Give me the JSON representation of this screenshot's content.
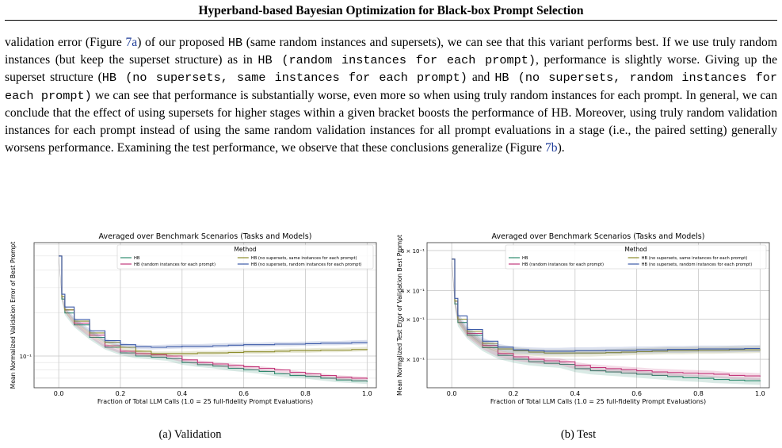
{
  "header": {
    "title": "Hyperband-based Bayesian Optimization for Black-box Prompt Selection"
  },
  "paragraph": {
    "segments": [
      {
        "t": "validation error (Figure "
      },
      {
        "t": "7a",
        "ref": true
      },
      {
        "t": ") of our proposed "
      },
      {
        "t": "HB",
        "mono": true
      },
      {
        "t": " (same random instances and supersets), we can see that this variant performs best. If we use truly random instances (but keep the superset structure) as in "
      },
      {
        "t": "HB (random instances for each prompt)",
        "mono": true
      },
      {
        "t": ", performance is slightly worse. Giving up the superset structure ("
      },
      {
        "t": "HB (no supersets, same instances for each prompt)",
        "mono": true
      },
      {
        "t": " and "
      },
      {
        "t": "HB (no supersets, random instances for each prompt)",
        "mono": true
      },
      {
        "t": " we can see that performance is substantially worse, even more so when using truly random instances for each prompt. In general, we can conclude that the effect of using supersets for higher stages within a given bracket boosts the performance of HB. Moreover, using truly random validation instances for each prompt instead of using the same random validation instances for all prompt evaluations in a stage (i.e., the paired setting) generally worsens performance. Examining the test performance, we observe that these conclusions generalize (Figure "
      },
      {
        "t": "7b",
        "ref": true
      },
      {
        "t": ")."
      }
    ]
  },
  "chart_data": [
    {
      "id": "a",
      "type": "line",
      "title": "Averaged over Benchmark Scenarios (Tasks and Models)",
      "xlabel": "Fraction of Total LLM Calls (1.0 = 25 full-fidelity Prompt Evaluations)",
      "ylabel": "Mean Normalized Validation Error of Best Prompt",
      "xlim": [
        -0.08,
        1.03
      ],
      "ylim": [
        0.06,
        0.62
      ],
      "yscale": "log",
      "xticks": [
        0.0,
        0.2,
        0.4,
        0.6,
        0.8,
        1.0
      ],
      "xtick_labels": [
        "0.0",
        "0.2",
        "0.4",
        "0.6",
        "0.8",
        "1.0"
      ],
      "yticks": [
        0.1
      ],
      "ytick_labels": [
        "10⁻¹"
      ],
      "grid": true,
      "legend": {
        "title": "Method",
        "position": "top-right"
      },
      "series": [
        {
          "name": "HB",
          "color": "#2e8b6e",
          "x": [
            0.0,
            0.01,
            0.02,
            0.05,
            0.1,
            0.15,
            0.2,
            0.25,
            0.3,
            0.35,
            0.4,
            0.45,
            0.5,
            0.55,
            0.6,
            0.65,
            0.7,
            0.75,
            0.8,
            0.85,
            0.9,
            0.95,
            1.0
          ],
          "y": [
            0.5,
            0.25,
            0.2,
            0.165,
            0.135,
            0.115,
            0.105,
            0.1,
            0.098,
            0.096,
            0.09,
            0.087,
            0.085,
            0.082,
            0.08,
            0.078,
            0.075,
            0.073,
            0.072,
            0.07,
            0.068,
            0.067,
            0.066
          ]
        },
        {
          "name": "HB (random instances for each prompt)",
          "color": "#c2387a",
          "x": [
            0.0,
            0.01,
            0.02,
            0.05,
            0.1,
            0.15,
            0.2,
            0.25,
            0.3,
            0.35,
            0.4,
            0.45,
            0.5,
            0.55,
            0.6,
            0.65,
            0.7,
            0.75,
            0.8,
            0.85,
            0.9,
            0.95,
            1.0
          ],
          "y": [
            0.5,
            0.26,
            0.21,
            0.17,
            0.14,
            0.118,
            0.108,
            0.104,
            0.102,
            0.1,
            0.094,
            0.09,
            0.088,
            0.086,
            0.084,
            0.082,
            0.08,
            0.077,
            0.075,
            0.073,
            0.071,
            0.07,
            0.069
          ]
        },
        {
          "name": "HB (no supersets, same instances for each prompt)",
          "color": "#8c8c2a",
          "x": [
            0.0,
            0.01,
            0.02,
            0.05,
            0.1,
            0.15,
            0.2,
            0.25,
            0.3,
            0.35,
            0.4,
            0.45,
            0.5,
            0.55,
            0.6,
            0.65,
            0.7,
            0.75,
            0.8,
            0.85,
            0.9,
            0.95,
            1.0
          ],
          "y": [
            0.5,
            0.26,
            0.21,
            0.175,
            0.145,
            0.125,
            0.115,
            0.108,
            0.104,
            0.104,
            0.104,
            0.105,
            0.105,
            0.106,
            0.107,
            0.107,
            0.108,
            0.109,
            0.109,
            0.11,
            0.11,
            0.111,
            0.112
          ]
        },
        {
          "name": "HB (no supersets, random instances for each prompt)",
          "color": "#3b5aa8",
          "x": [
            0.0,
            0.01,
            0.02,
            0.05,
            0.1,
            0.15,
            0.2,
            0.25,
            0.3,
            0.35,
            0.4,
            0.45,
            0.5,
            0.55,
            0.6,
            0.65,
            0.7,
            0.75,
            0.8,
            0.85,
            0.9,
            0.95,
            1.0
          ],
          "y": [
            0.5,
            0.27,
            0.22,
            0.18,
            0.15,
            0.128,
            0.12,
            0.116,
            0.115,
            0.116,
            0.117,
            0.117,
            0.118,
            0.119,
            0.12,
            0.12,
            0.121,
            0.121,
            0.122,
            0.123,
            0.123,
            0.124,
            0.125
          ]
        }
      ]
    },
    {
      "id": "b",
      "type": "line",
      "title": "Averaged over Benchmark Scenarios (Tasks and Models)",
      "xlabel": "Fraction of Total LLM Calls (1.0 = 25 full-fidelity Prompt Evaluations)",
      "ylabel": "Mean Normalized Test Error of Validation Best Prompt",
      "xlim": [
        -0.08,
        1.03
      ],
      "ylim": [
        0.15,
        0.65
      ],
      "yscale": "log",
      "xticks": [
        0.0,
        0.2,
        0.4,
        0.6,
        0.8,
        1.0
      ],
      "xtick_labels": [
        "0.0",
        "0.2",
        "0.4",
        "0.6",
        "0.8",
        "1.0"
      ],
      "yticks": [
        0.2,
        0.3,
        0.4,
        0.6
      ],
      "ytick_labels": [
        "2 × 10⁻¹",
        "3 × 10⁻¹",
        "4 × 10⁻¹",
        "6 × 10⁻¹"
      ],
      "grid": true,
      "legend": {
        "title": "Method",
        "position": "top-right"
      },
      "series": [
        {
          "name": "HB",
          "color": "#2e8b6e",
          "x": [
            0.0,
            0.01,
            0.02,
            0.05,
            0.1,
            0.15,
            0.2,
            0.25,
            0.3,
            0.35,
            0.4,
            0.45,
            0.5,
            0.55,
            0.6,
            0.65,
            0.7,
            0.75,
            0.8,
            0.85,
            0.9,
            0.95,
            1.0
          ],
          "y": [
            0.55,
            0.35,
            0.29,
            0.255,
            0.225,
            0.208,
            0.2,
            0.195,
            0.192,
            0.19,
            0.182,
            0.178,
            0.176,
            0.174,
            0.172,
            0.17,
            0.168,
            0.166,
            0.165,
            0.163,
            0.162,
            0.161,
            0.16
          ]
        },
        {
          "name": "HB (random instances for each prompt)",
          "color": "#c2387a",
          "x": [
            0.0,
            0.01,
            0.02,
            0.05,
            0.1,
            0.15,
            0.2,
            0.25,
            0.3,
            0.35,
            0.4,
            0.45,
            0.5,
            0.55,
            0.6,
            0.65,
            0.7,
            0.75,
            0.8,
            0.85,
            0.9,
            0.95,
            1.0
          ],
          "y": [
            0.55,
            0.36,
            0.3,
            0.26,
            0.23,
            0.212,
            0.205,
            0.2,
            0.197,
            0.195,
            0.188,
            0.184,
            0.182,
            0.18,
            0.178,
            0.176,
            0.175,
            0.174,
            0.173,
            0.172,
            0.17,
            0.169,
            0.168
          ]
        },
        {
          "name": "HB (no supersets, same instances for each prompt)",
          "color": "#8c8c2a",
          "x": [
            0.0,
            0.01,
            0.02,
            0.05,
            0.1,
            0.15,
            0.2,
            0.25,
            0.3,
            0.35,
            0.4,
            0.45,
            0.5,
            0.55,
            0.6,
            0.65,
            0.7,
            0.75,
            0.8,
            0.85,
            0.9,
            0.95,
            1.0
          ],
          "y": [
            0.55,
            0.36,
            0.3,
            0.265,
            0.235,
            0.222,
            0.218,
            0.215,
            0.213,
            0.213,
            0.213,
            0.213,
            0.214,
            0.215,
            0.216,
            0.217,
            0.218,
            0.218,
            0.219,
            0.219,
            0.22,
            0.22,
            0.221
          ]
        },
        {
          "name": "HB (no supersets, random instances for each prompt)",
          "color": "#3b5aa8",
          "x": [
            0.0,
            0.01,
            0.02,
            0.05,
            0.1,
            0.15,
            0.2,
            0.25,
            0.3,
            0.35,
            0.4,
            0.45,
            0.5,
            0.55,
            0.6,
            0.65,
            0.7,
            0.75,
            0.8,
            0.85,
            0.9,
            0.95,
            1.0
          ],
          "y": [
            0.55,
            0.37,
            0.31,
            0.27,
            0.24,
            0.226,
            0.22,
            0.218,
            0.217,
            0.217,
            0.218,
            0.218,
            0.219,
            0.219,
            0.22,
            0.22,
            0.221,
            0.221,
            0.222,
            0.222,
            0.222,
            0.223,
            0.223
          ]
        }
      ]
    }
  ],
  "captions": {
    "a": "(a) Validation",
    "b": "(b) Test"
  }
}
